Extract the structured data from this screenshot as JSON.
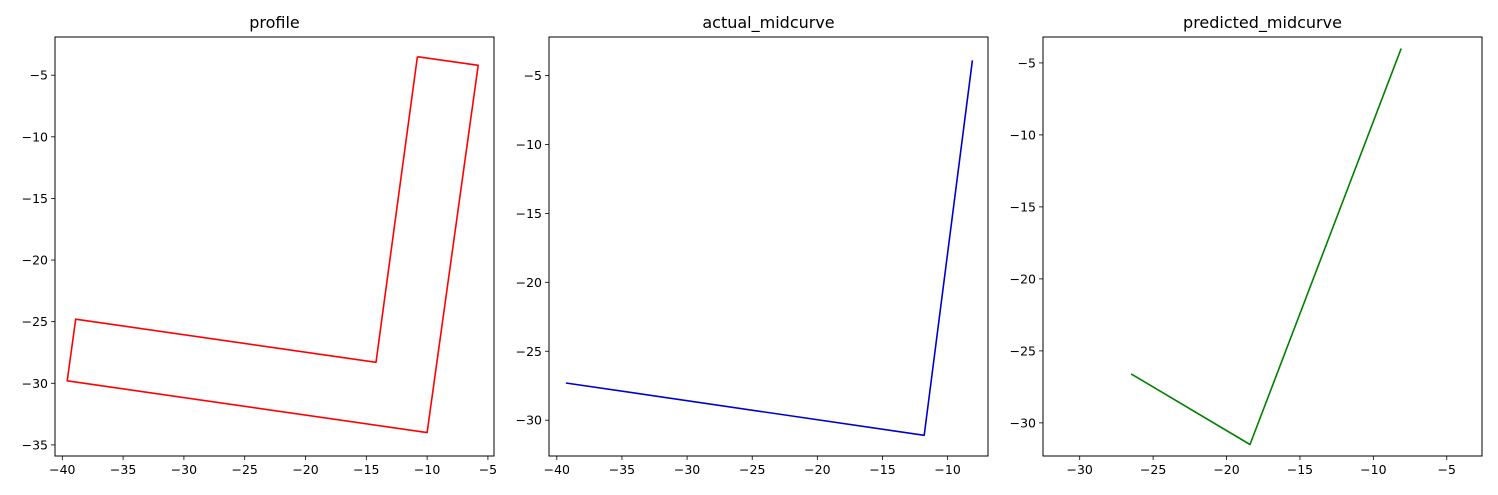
{
  "chart_data": [
    {
      "type": "line",
      "title": "profile",
      "xlabel": "",
      "ylabel": "",
      "xlim": [
        -40.6,
        -4.5
      ],
      "ylim": [
        -35.9,
        -1.9
      ],
      "xticks": [
        -40,
        -35,
        -30,
        -25,
        -20,
        -15,
        -10,
        -5
      ],
      "yticks": [
        -35,
        -30,
        -25,
        -20,
        -15,
        -10,
        -5
      ],
      "series": [
        {
          "color": "#ff0000",
          "x": [
            -10.8,
            -5.8,
            -10.0,
            -39.6,
            -38.9,
            -14.2,
            -10.8
          ],
          "y": [
            -3.5,
            -4.2,
            -34.0,
            -29.8,
            -24.8,
            -28.3,
            -3.5
          ]
        }
      ]
    },
    {
      "type": "line",
      "title": "actual_midcurve",
      "xlabel": "",
      "ylabel": "",
      "xlim": [
        -40.6,
        -6.9
      ],
      "ylim": [
        -32.6,
        -2.2
      ],
      "xticks": [
        -40,
        -35,
        -30,
        -25,
        -20,
        -15,
        -10
      ],
      "yticks": [
        -30,
        -25,
        -20,
        -15,
        -10,
        -5
      ],
      "series": [
        {
          "color": "#0000cc",
          "x": [
            -39.3,
            -11.8,
            -8.1
          ],
          "y": [
            -27.3,
            -31.1,
            -3.9
          ]
        }
      ]
    },
    {
      "type": "line",
      "title": "predicted_midcurve",
      "xlabel": "",
      "ylabel": "",
      "xlim": [
        -32.5,
        -2.6
      ],
      "ylim": [
        -32.3,
        -3.2
      ],
      "xticks": [
        -30,
        -25,
        -20,
        -15,
        -10,
        -5
      ],
      "yticks": [
        -30,
        -25,
        -20,
        -15,
        -10,
        -5
      ],
      "series": [
        {
          "color": "#008000",
          "x": [
            -26.5,
            -18.4,
            -8.1
          ],
          "y": [
            -26.6,
            -31.5,
            -4.0
          ]
        }
      ]
    }
  ]
}
